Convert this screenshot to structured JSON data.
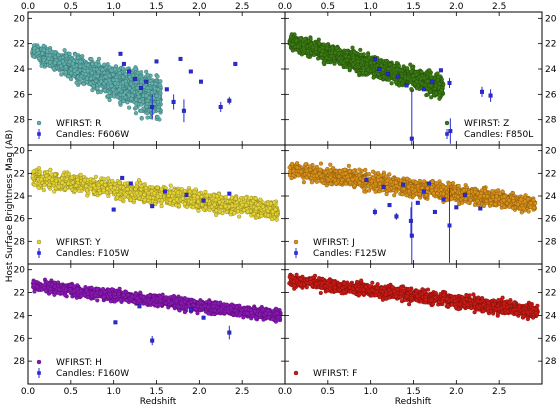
{
  "figure": {
    "ylabel": "Host Surface Brightness Mag (AB)",
    "xlabel": "Redshift"
  },
  "chart_data": [
    {
      "type": "scatter",
      "panel": "top-left",
      "xlim": [
        0,
        3
      ],
      "ylim": [
        30,
        19.5
      ],
      "xticks": [
        "0.0",
        "0.5",
        "1.0",
        "1.5",
        "2.0",
        "2.5"
      ],
      "xtick_labels_top": true,
      "xtick_labels_bottom": false,
      "yticks": [
        "20",
        "22",
        "24",
        "26",
        "28"
      ],
      "legend_placement": "lower-left",
      "series": [
        {
          "name": "WFIRST: R",
          "color": "#5fb0ad",
          "band": {
            "z_start": 0.05,
            "z_end": 1.55,
            "top_start": 21.9,
            "top_end": 24.0,
            "bot_start": 23.4,
            "bot_end": 28.8
          }
        },
        {
          "name": "Candles: F606W",
          "color": "#2a2ad8",
          "points": [
            {
              "x": 1.08,
              "y": 22.8
            },
            {
              "x": 1.12,
              "y": 23.6
            },
            {
              "x": 1.18,
              "y": 24.2
            },
            {
              "x": 1.25,
              "y": 24.8
            },
            {
              "x": 1.32,
              "y": 25.5
            },
            {
              "x": 1.38,
              "y": 25.0
            },
            {
              "x": 1.5,
              "y": 23.4
            },
            {
              "x": 1.62,
              "y": 25.6
            },
            {
              "x": 1.7,
              "y": 26.6,
              "err": 0.6
            },
            {
              "x": 1.78,
              "y": 23.2
            },
            {
              "x": 1.82,
              "y": 27.3,
              "err": 0.9
            },
            {
              "x": 1.9,
              "y": 24.2
            },
            {
              "x": 2.02,
              "y": 25.0
            },
            {
              "x": 2.25,
              "y": 27.0,
              "err": 0.4
            },
            {
              "x": 2.35,
              "y": 26.5,
              "err": 0.3
            },
            {
              "x": 2.42,
              "y": 23.6
            },
            {
              "x": 1.45,
              "y": 27.0,
              "err": 1.0
            }
          ]
        }
      ]
    },
    {
      "type": "scatter",
      "panel": "top-right",
      "xlim": [
        0,
        3
      ],
      "ylim": [
        30,
        19.5
      ],
      "xticks": [
        "0.0",
        "0.5",
        "1.0",
        "1.5",
        "2.0",
        "2.5"
      ],
      "xtick_labels_top": true,
      "xtick_labels_bottom": false,
      "yticks": [
        "20",
        "22",
        "24",
        "26",
        "28"
      ],
      "legend_placement": "lower-right",
      "series": [
        {
          "name": "WFIRST: Z",
          "color": "#3a7a12",
          "band": {
            "z_start": 0.05,
            "z_end": 1.85,
            "top_start": 21.0,
            "top_end": 24.3,
            "bot_start": 22.7,
            "bot_end": 26.6
          }
        },
        {
          "name": "Candles: F850L",
          "color": "#2a2ad8",
          "points": [
            {
              "x": 1.05,
              "y": 23.2
            },
            {
              "x": 1.2,
              "y": 24.4
            },
            {
              "x": 1.32,
              "y": 24.6
            },
            {
              "x": 1.42,
              "y": 25.3
            },
            {
              "x": 1.48,
              "y": 29.5,
              "err": 3.8
            },
            {
              "x": 1.62,
              "y": 25.6
            },
            {
              "x": 1.72,
              "y": 25.0
            },
            {
              "x": 1.82,
              "y": 24.1
            },
            {
              "x": 1.92,
              "y": 25.1,
              "err": 0.4
            },
            {
              "x": 1.93,
              "y": 28.9,
              "err": 1.0
            },
            {
              "x": 2.3,
              "y": 25.8,
              "err": 0.4
            },
            {
              "x": 2.4,
              "y": 26.1,
              "err": 0.5
            },
            {
              "x": 1.1,
              "y": 24.0
            }
          ]
        }
      ]
    },
    {
      "type": "scatter",
      "panel": "middle-left",
      "xlim": [
        0,
        3
      ],
      "ylim": [
        30,
        19.5
      ],
      "xticks": [
        "0.0",
        "0.5",
        "1.0",
        "1.5",
        "2.0",
        "2.5"
      ],
      "xtick_labels_top": false,
      "xtick_labels_bottom": false,
      "yticks": [
        "20",
        "22",
        "24",
        "26",
        "28"
      ],
      "legend_placement": "lower-left",
      "series": [
        {
          "name": "WFIRST: Y",
          "color": "#e3d233",
          "band": {
            "z_start": 0.05,
            "z_end": 2.92,
            "top_start": 21.3,
            "top_end": 24.3,
            "bot_start": 23.4,
            "bot_end": 26.4
          }
        },
        {
          "name": "Candles: F105W",
          "color": "#2a2ad8",
          "points": [
            {
              "x": 1.1,
              "y": 22.4
            },
            {
              "x": 1.2,
              "y": 22.9
            },
            {
              "x": 1.0,
              "y": 25.2
            },
            {
              "x": 1.45,
              "y": 24.9
            },
            {
              "x": 1.85,
              "y": 23.9
            },
            {
              "x": 2.35,
              "y": 23.8
            },
            {
              "x": 1.6,
              "y": 23.6
            },
            {
              "x": 2.05,
              "y": 24.4
            }
          ]
        }
      ]
    },
    {
      "type": "scatter",
      "panel": "middle-right",
      "xlim": [
        0,
        3
      ],
      "ylim": [
        30,
        19.5
      ],
      "xticks": [
        "0.0",
        "0.5",
        "1.0",
        "1.5",
        "2.0",
        "2.5"
      ],
      "xtick_labels_top": false,
      "xtick_labels_bottom": false,
      "yticks": [
        "20",
        "22",
        "24",
        "26",
        "28"
      ],
      "legend_placement": "lower-left",
      "series": [
        {
          "name": "WFIRST: J",
          "color": "#d99018",
          "band": {
            "z_start": 0.05,
            "z_end": 2.92,
            "top_start": 20.6,
            "top_end": 23.9,
            "bot_start": 22.8,
            "bot_end": 25.6
          }
        },
        {
          "name": "Candles: F125W",
          "color": "#2a2ad8",
          "points": [
            {
              "x": 0.95,
              "y": 22.6
            },
            {
              "x": 1.05,
              "y": 25.4,
              "err": 0.3
            },
            {
              "x": 1.15,
              "y": 23.2
            },
            {
              "x": 1.3,
              "y": 25.8,
              "err": 0.3
            },
            {
              "x": 1.38,
              "y": 23.0
            },
            {
              "x": 1.47,
              "y": 26.2,
              "err": 1.2
            },
            {
              "x": 1.48,
              "y": 27.5,
              "err": 3.0
            },
            {
              "x": 1.55,
              "y": 24.6
            },
            {
              "x": 1.62,
              "y": 23.6
            },
            {
              "x": 1.75,
              "y": 25.4
            },
            {
              "x": 1.85,
              "y": 24.3
            },
            {
              "x": 1.92,
              "y": 26.6,
              "err": 3.3
            },
            {
              "x": 2.0,
              "y": 25.0
            },
            {
              "x": 2.1,
              "y": 23.9
            },
            {
              "x": 2.28,
              "y": 25.1
            },
            {
              "x": 1.68,
              "y": 22.9
            },
            {
              "x": 1.22,
              "y": 24.8
            }
          ]
        }
      ]
    },
    {
      "type": "scatter",
      "panel": "bottom-left",
      "xlim": [
        0,
        3
      ],
      "ylim": [
        30,
        19.5
      ],
      "xticks": [
        "0.0",
        "0.5",
        "1.0",
        "1.5",
        "2.0",
        "2.5"
      ],
      "xtick_labels_top": false,
      "xtick_labels_bottom": true,
      "yticks": [
        "20",
        "22",
        "24",
        "26",
        "28"
      ],
      "legend_placement": "lower-left",
      "series": [
        {
          "name": "WFIRST: H",
          "color": "#8a17b4",
          "band": {
            "z_start": 0.05,
            "z_end": 2.95,
            "top_start": 20.7,
            "top_end": 23.5,
            "bot_start": 22.0,
            "bot_end": 24.6
          }
        },
        {
          "name": "Candles: F160W",
          "color": "#2a2ad8",
          "points": [
            {
              "x": 1.02,
              "y": 24.6
            },
            {
              "x": 1.45,
              "y": 26.2,
              "err": 0.4
            },
            {
              "x": 2.35,
              "y": 25.5,
              "err": 0.6
            },
            {
              "x": 1.9,
              "y": 23.5
            },
            {
              "x": 1.3,
              "y": 23.2
            },
            {
              "x": 2.05,
              "y": 24.2
            }
          ]
        }
      ]
    },
    {
      "type": "scatter",
      "panel": "bottom-right",
      "xlim": [
        0,
        3
      ],
      "ylim": [
        30,
        19.5
      ],
      "xticks": [
        "0.0",
        "0.5",
        "1.0",
        "1.5",
        "2.0",
        "2.5"
      ],
      "xtick_labels_top": false,
      "xtick_labels_bottom": true,
      "yticks": [
        "20",
        "22",
        "24",
        "26",
        "28"
      ],
      "legend_placement": "lower-left",
      "series": [
        {
          "name": "WFIRST: F",
          "color": "#c81a14",
          "band": {
            "z_start": 0.05,
            "z_end": 2.95,
            "top_start": 20.2,
            "top_end": 22.9,
            "bot_start": 21.6,
            "bot_end": 24.4
          }
        }
      ]
    }
  ]
}
